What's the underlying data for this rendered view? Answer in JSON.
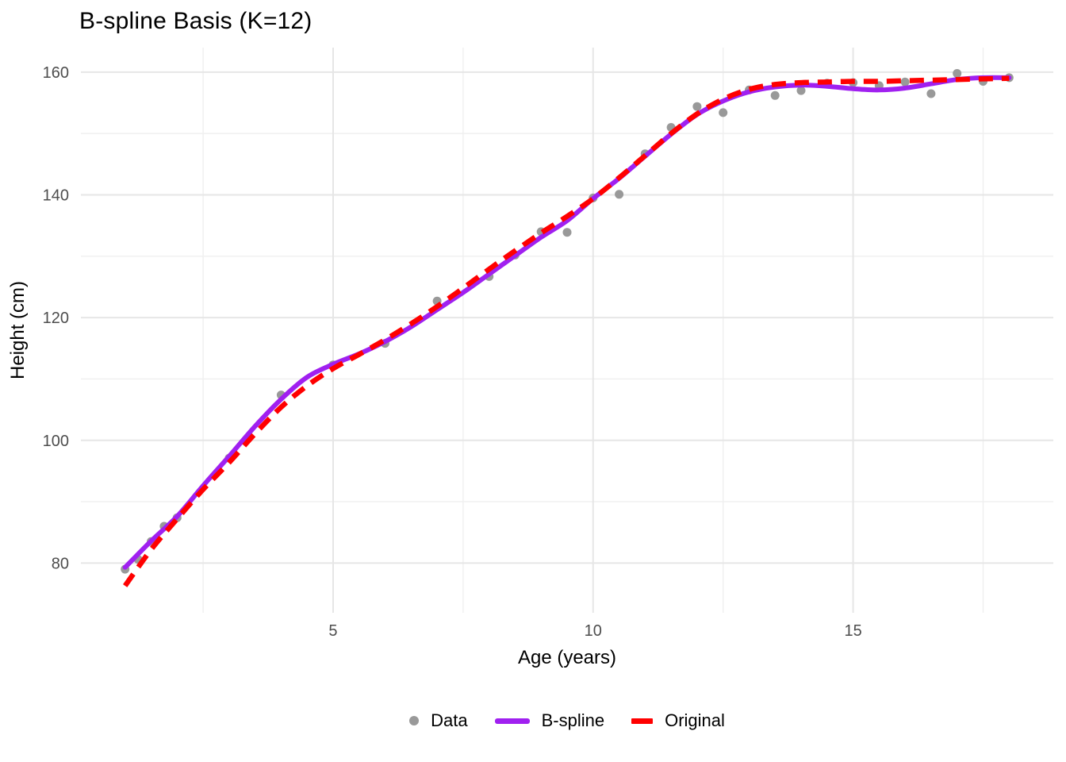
{
  "title": "B-spline Basis (K=12)",
  "colors": {
    "background": "#FFFFFF",
    "grid_major": "#E6E6E6",
    "grid_minor": "#EFEFEF",
    "axis_text": "#4D4D4D",
    "axis_title": "#000000",
    "title_text": "#000000",
    "point": "#999999",
    "bspline": "#A020F0",
    "original": "#FF0000"
  },
  "chart_data": {
    "type": "scatter",
    "title": "B-spline Basis (K=12)",
    "xlabel": "Age (years)",
    "ylabel": "Height (cm)",
    "xlim": [
      0.15,
      18.85
    ],
    "ylim": [
      71.9,
      164.0
    ],
    "x_ticks_major": [
      5,
      10,
      15
    ],
    "x_ticks_minor": [
      2.5,
      7.5,
      12.5,
      17.5
    ],
    "y_ticks_major": [
      80,
      100,
      120,
      140,
      160
    ],
    "y_ticks_minor": [
      90,
      110,
      130,
      150
    ],
    "grid": true,
    "legend_position": "bottom",
    "series": [
      {
        "name": "Data",
        "kind": "scatter",
        "color": "#999999",
        "point_radius": 5.5,
        "points": [
          [
            1,
            79.0
          ],
          [
            1.25,
            80.6
          ],
          [
            1.5,
            83.5
          ],
          [
            1.75,
            86.0
          ],
          [
            2,
            87.4
          ],
          [
            3,
            97.1
          ],
          [
            4,
            107.4
          ],
          [
            5,
            112.3
          ],
          [
            6,
            115.8
          ],
          [
            7,
            122.7
          ],
          [
            8,
            126.7
          ],
          [
            8.5,
            130.2
          ],
          [
            9,
            134.0
          ],
          [
            9.5,
            133.9
          ],
          [
            10,
            139.5
          ],
          [
            10.5,
            140.1
          ],
          [
            11,
            146.7
          ],
          [
            11.5,
            151.0
          ],
          [
            12,
            154.4
          ],
          [
            12.5,
            153.4
          ],
          [
            13,
            157.1
          ],
          [
            13.5,
            156.2
          ],
          [
            14,
            157.0
          ],
          [
            14.5,
            158.2
          ],
          [
            15,
            158.3
          ],
          [
            15.5,
            157.8
          ],
          [
            16,
            158.4
          ],
          [
            16.5,
            156.5
          ],
          [
            17,
            159.8
          ],
          [
            17.5,
            158.5
          ],
          [
            18,
            159.1
          ]
        ]
      },
      {
        "name": "B-spline",
        "kind": "line",
        "color": "#A020F0",
        "stroke_width": 6,
        "dash": null,
        "points": [
          [
            1,
            79.3
          ],
          [
            1.5,
            83.6
          ],
          [
            2,
            87.6
          ],
          [
            2.5,
            92.6
          ],
          [
            3,
            97.4
          ],
          [
            3.5,
            102.3
          ],
          [
            4,
            106.7
          ],
          [
            4.5,
            110.3
          ],
          [
            5,
            112.4
          ],
          [
            5.5,
            114.1
          ],
          [
            6,
            116.1
          ],
          [
            6.5,
            118.5
          ],
          [
            7,
            121.3
          ],
          [
            7.5,
            124.1
          ],
          [
            8,
            127.1
          ],
          [
            8.5,
            130.1
          ],
          [
            9,
            133.1
          ],
          [
            9.5,
            135.8
          ],
          [
            10,
            139.4
          ],
          [
            10.5,
            142.7
          ],
          [
            11,
            146.3
          ],
          [
            11.5,
            149.9
          ],
          [
            12,
            153.1
          ],
          [
            12.5,
            155.3
          ],
          [
            13,
            156.8
          ],
          [
            13.5,
            157.6
          ],
          [
            14,
            157.9
          ],
          [
            14.5,
            157.7
          ],
          [
            15,
            157.3
          ],
          [
            15.5,
            157.1
          ],
          [
            16,
            157.4
          ],
          [
            16.5,
            158.1
          ],
          [
            17,
            158.8
          ],
          [
            17.5,
            159.1
          ],
          [
            18,
            159.1
          ]
        ]
      },
      {
        "name": "Original",
        "kind": "line",
        "color": "#FF0000",
        "stroke_width": 6.5,
        "dash": [
          18,
          11
        ],
        "points": [
          [
            1,
            76.3
          ],
          [
            1.5,
            82.2
          ],
          [
            2,
            87.2
          ],
          [
            2.5,
            92.0
          ],
          [
            3,
            96.4
          ],
          [
            3.5,
            101.1
          ],
          [
            4,
            105.4
          ],
          [
            4.5,
            108.9
          ],
          [
            5,
            111.7
          ],
          [
            5.5,
            114.0
          ],
          [
            6,
            116.4
          ],
          [
            6.5,
            119.0
          ],
          [
            7,
            121.8
          ],
          [
            7.5,
            124.8
          ],
          [
            8,
            127.9
          ],
          [
            8.5,
            130.9
          ],
          [
            9,
            133.8
          ],
          [
            9.5,
            136.5
          ],
          [
            10,
            139.4
          ],
          [
            10.5,
            142.8
          ],
          [
            11,
            146.4
          ],
          [
            11.5,
            150.0
          ],
          [
            12,
            153.2
          ],
          [
            12.5,
            155.6
          ],
          [
            13,
            157.2
          ],
          [
            13.5,
            158.0
          ],
          [
            14,
            158.3
          ],
          [
            14.5,
            158.4
          ],
          [
            15,
            158.5
          ],
          [
            15.5,
            158.5
          ],
          [
            16,
            158.6
          ],
          [
            16.5,
            158.7
          ],
          [
            17,
            158.8
          ],
          [
            17.5,
            158.9
          ],
          [
            18,
            159.0
          ]
        ]
      }
    ]
  },
  "legend": {
    "data_label": "Data",
    "bspline_label": "B-spline",
    "original_label": "Original"
  }
}
